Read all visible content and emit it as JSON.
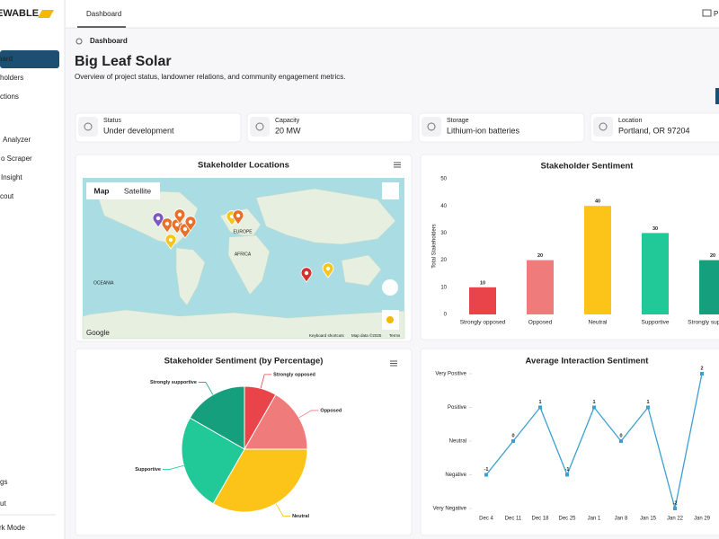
{
  "sidebar": {
    "brand": "EWABLE",
    "nav": [
      "oard",
      "holders",
      "ctions",
      "Analyzer",
      "o Scraper",
      "Insight",
      "cout"
    ],
    "footer": [
      "gs",
      "ut",
      "rk Mode"
    ]
  },
  "topbar": {
    "tab": "Dashboard",
    "right": "P"
  },
  "header": {
    "breadcrumb": "Dashboard",
    "title": "Big Leaf Solar",
    "subtitle": "Overview of project status, landowner relations, and community engagement metrics."
  },
  "cards": [
    {
      "label": "Status",
      "value": "Under development"
    },
    {
      "label": "Capacity",
      "value": "20 MW"
    },
    {
      "label": "Storage",
      "value": "Lithium-ion batteries"
    },
    {
      "label": "Location",
      "value": "Portland, OR 97204"
    }
  ],
  "map": {
    "title": "Stakeholder Locations",
    "tabs": [
      "Map",
      "Satellite"
    ],
    "labels": [
      "EUROPE",
      "AFRICA",
      "OCEANIA"
    ],
    "attribution": [
      "Google",
      "Keyboard shortcuts",
      "Map data ©2025",
      "Terms"
    ]
  },
  "chart_data": [
    {
      "type": "bar",
      "title": "Stakeholder Sentiment",
      "y_label": "Total Stakeholders",
      "categories": [
        "Strongly opposed",
        "Opposed",
        "Neutral",
        "Supportive",
        "Strongly supportive"
      ],
      "values": [
        10,
        20,
        40,
        30,
        20
      ],
      "colors": [
        "#e8444a",
        "#f07b7b",
        "#fcc419",
        "#20c997",
        "#159f7d"
      ],
      "ylim": [
        0,
        50
      ],
      "yticks": [
        0,
        10,
        20,
        30,
        40,
        50
      ],
      "grid": false
    },
    {
      "type": "pie",
      "title": "Stakeholder Sentiment (by Percentage)",
      "categories": [
        "Strongly opposed",
        "Opposed",
        "Neutral",
        "Supportive",
        "Strongly supportive"
      ],
      "values": [
        8.3,
        16.7,
        33.3,
        25,
        16.7
      ],
      "colors": [
        "#e8444a",
        "#f07b7b",
        "#fcc419",
        "#20c997",
        "#159f7d"
      ]
    },
    {
      "type": "line",
      "title": "Average Interaction Sentiment",
      "categories": [
        "Dec 4",
        "Dec 11",
        "Dec 18",
        "Dec 25",
        "Jan 1",
        "Jan 8",
        "Jan 15",
        "Jan 22",
        "Jan 29"
      ],
      "values": [
        -1,
        0,
        1,
        -1,
        1,
        0,
        1,
        -2,
        2
      ],
      "color": "#3b9fd1",
      "ylim": [
        -2,
        2
      ],
      "yticks": [
        {
          "value": -2,
          "label": "Very Negative"
        },
        {
          "value": -1,
          "label": "Negative"
        },
        {
          "value": 0,
          "label": "Neutral"
        },
        {
          "value": 1,
          "label": "Positive"
        },
        {
          "value": 2,
          "label": "Very Positive"
        }
      ]
    }
  ]
}
